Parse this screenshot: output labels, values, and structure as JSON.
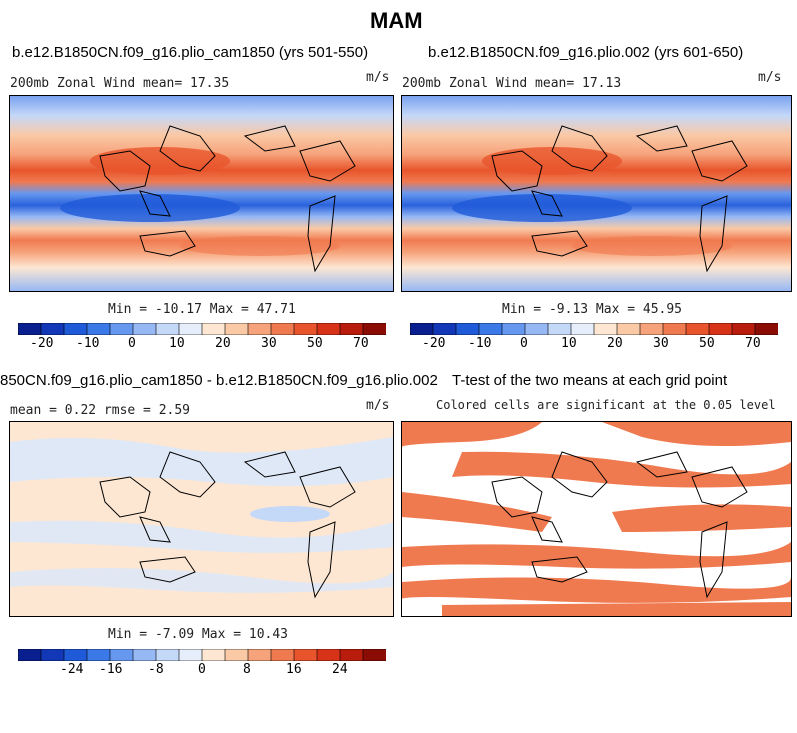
{
  "figure": {
    "title": "MAM"
  },
  "panels": [
    {
      "title": "b.e12.B1850CN.f09_g16.plio_cam1850 (yrs 501-550)",
      "left_label": "200mb Zonal Wind  mean=  17.35",
      "units": "m/s",
      "minmax": "Min = -10.17 Max =  47.71"
    },
    {
      "title": "b.e12.B1850CN.f09_g16.plio.002 (yrs 601-650)",
      "left_label": "200mb Zonal Wind  mean=  17.13",
      "units": "m/s",
      "minmax": "Min =  -9.13 Max =  45.95"
    },
    {
      "title": "850CN.f09_g16.plio_cam1850 - b.e12.B1850CN.f09_g16.plio.002",
      "left_label": "mean =   0.22    rmse =   2.59",
      "units": "m/s",
      "minmax": "Min =  -7.09 Max =  10.43"
    },
    {
      "title": "T-test of the two means at each grid point",
      "subtitle": "Colored cells are significant at the 0.05 level"
    }
  ],
  "colorbars": {
    "wind": {
      "colors": [
        "#0a1f8f",
        "#1238b8",
        "#1f5ad8",
        "#3b78e8",
        "#6698f0",
        "#96b8f4",
        "#c4d8f8",
        "#e6eefc",
        "#fde7d2",
        "#fac9a6",
        "#f6a27a",
        "#f07a50",
        "#e8552c",
        "#d83218",
        "#b81c0c",
        "#8a0c04"
      ],
      "tick_labels": [
        "-20",
        "-10",
        "0",
        "10",
        "20",
        "30",
        "50",
        "70"
      ]
    },
    "diff": {
      "colors": [
        "#0a1f8f",
        "#1238b8",
        "#1f5ad8",
        "#3b78e8",
        "#6698f0",
        "#96b8f4",
        "#c4d8f8",
        "#e6eefc",
        "#fde7d2",
        "#fac9a6",
        "#f6a27a",
        "#f07a50",
        "#e8552c",
        "#d83218",
        "#b81c0c",
        "#8a0c04"
      ],
      "tick_labels": [
        "-24",
        "-16",
        "-8",
        "0",
        "8",
        "16",
        "24"
      ]
    }
  }
}
